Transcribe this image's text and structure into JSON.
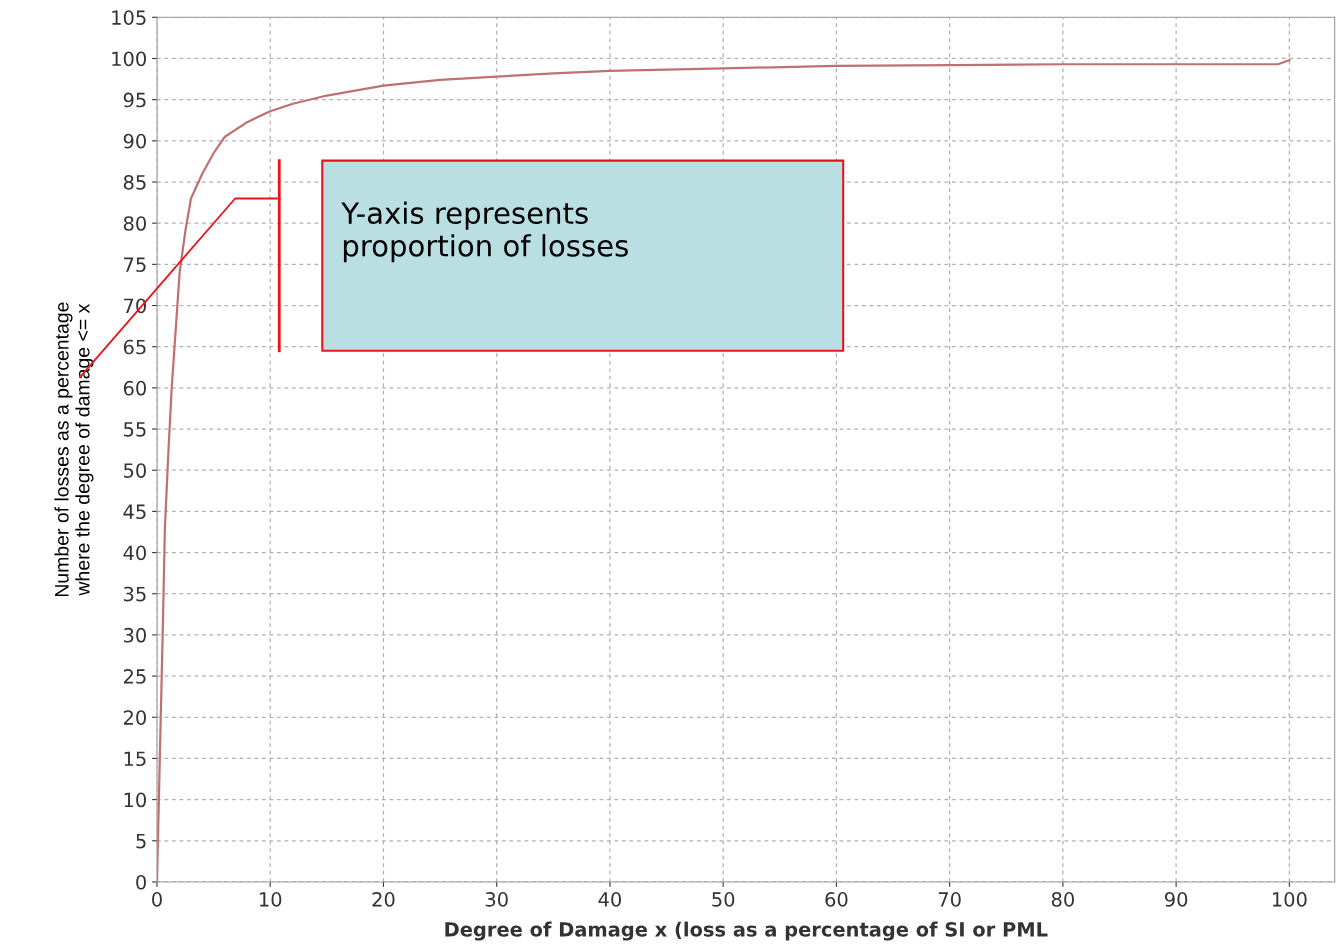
{
  "chart_data": {
    "type": "line",
    "xlabel": "Degree of Damage x (loss as a percentage of SI or PML",
    "ylabel": "Number of losses as a percentage\nwhere the degree of damage <= x",
    "xlim": [
      0,
      104
    ],
    "xticks": [
      0,
      10,
      20,
      30,
      40,
      50,
      60,
      70,
      80,
      90,
      100
    ],
    "ylim": [
      0,
      105
    ],
    "yticks": [
      0,
      5,
      10,
      15,
      20,
      25,
      30,
      35,
      40,
      45,
      50,
      55,
      60,
      65,
      70,
      75,
      80,
      85,
      90,
      95,
      100,
      105
    ],
    "grid": true,
    "line_style": "solid",
    "marker": "none",
    "annotations": [
      "Y-axis represents\nproportion of losses"
    ],
    "series": [
      {
        "color": "#c07070",
        "x": [
          0,
          0.1,
          0.3,
          0.5,
          0.7,
          1,
          1.3,
          1.7,
          2,
          2.5,
          3,
          4,
          5,
          6,
          8,
          10,
          12,
          15,
          20,
          25,
          30,
          35,
          40,
          50,
          60,
          70,
          80,
          90,
          99,
          100
        ],
        "values": [
          0,
          6,
          18,
          30,
          43,
          52,
          60,
          68,
          74,
          79,
          83,
          86,
          88.5,
          90.5,
          92.3,
          93.6,
          94.5,
          95.5,
          96.7,
          97.4,
          97.8,
          98.2,
          98.5,
          98.8,
          99.1,
          99.2,
          99.3,
          99.3,
          99.3,
          99.8
        ]
      }
    ]
  }
}
